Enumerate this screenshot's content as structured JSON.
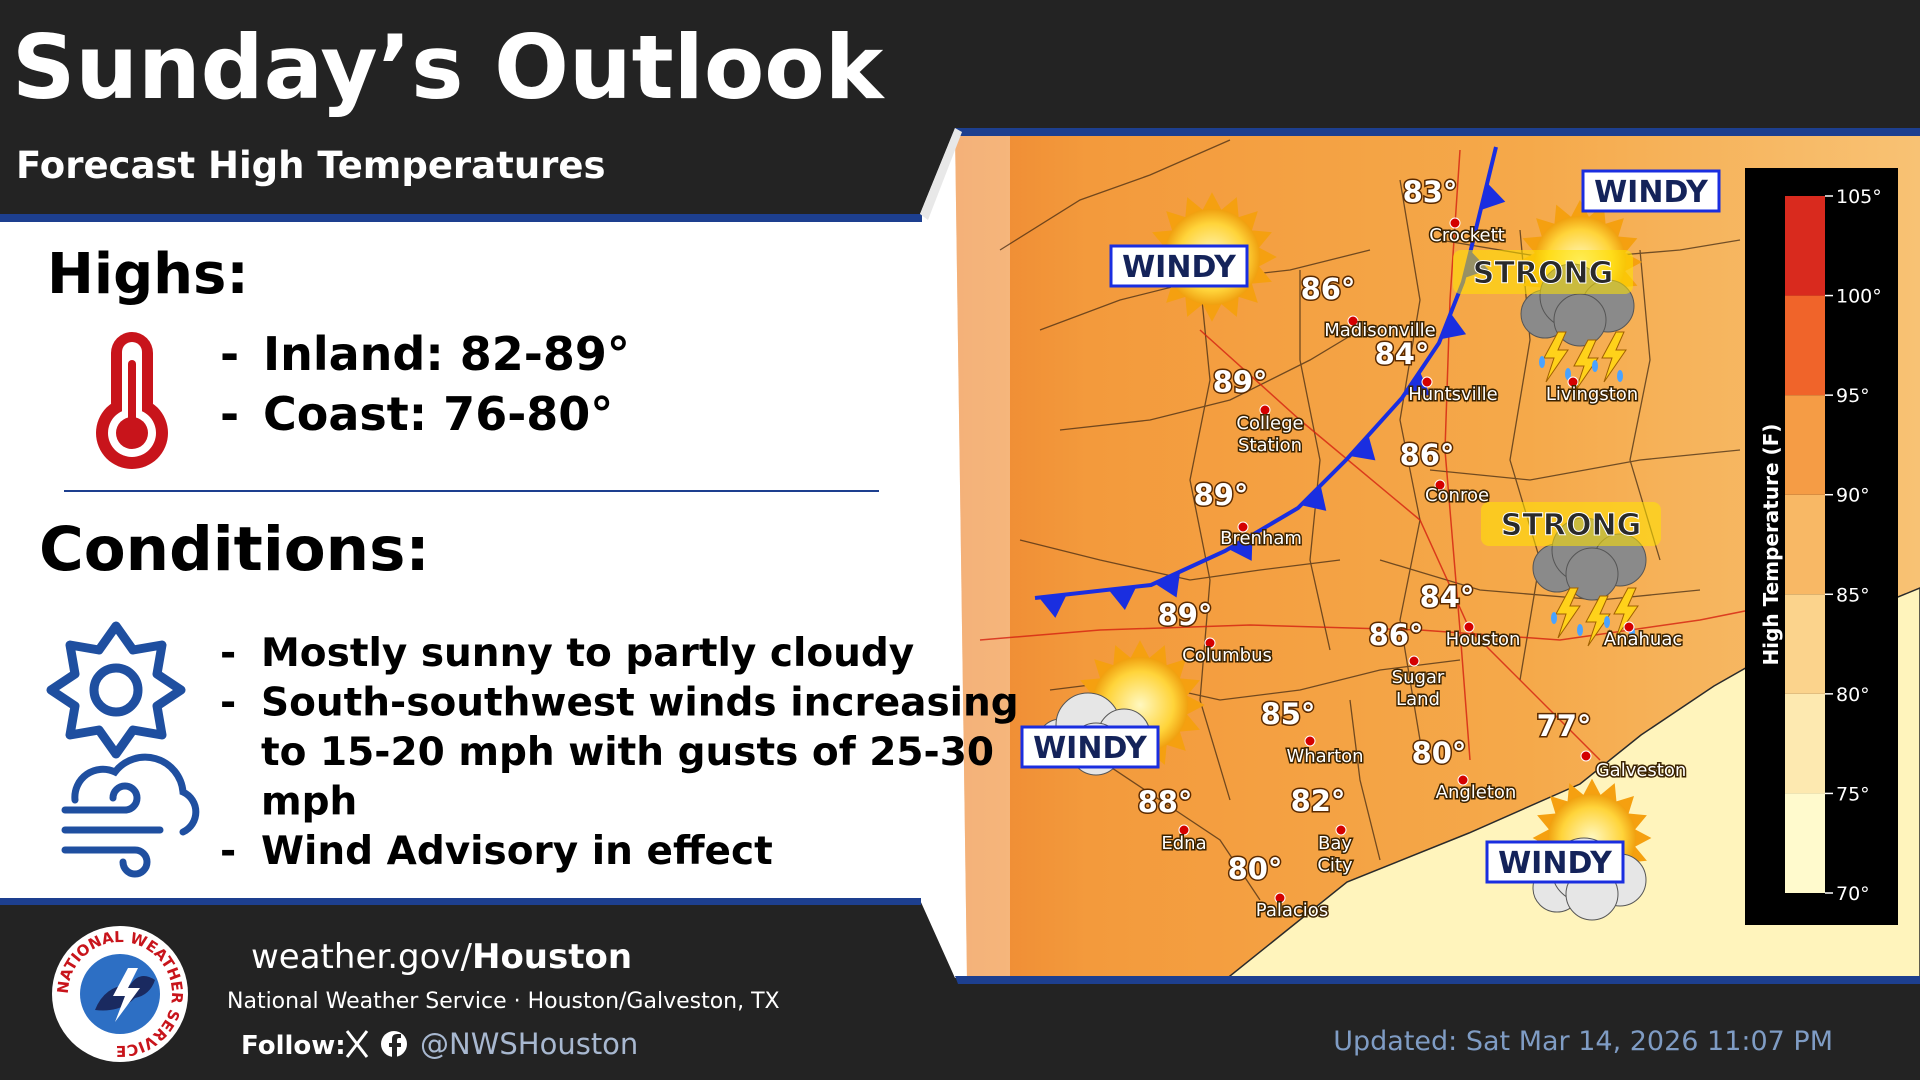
{
  "header": {
    "title": "Sunday’s Outlook",
    "subtitle": "Forecast High Temperatures"
  },
  "bullet": "-",
  "highs": {
    "heading": "Highs:",
    "items": [
      "Inland: 82-89°",
      "Coast: 76-80°"
    ]
  },
  "conditions": {
    "heading": "Conditions:",
    "items": [
      [
        "Mostly sunny to partly cloudy"
      ],
      [
        "South-southwest winds increasing",
        "to 15-20 mph with gusts of 25-30",
        "mph"
      ],
      [
        "Wind Advisory in effect"
      ]
    ]
  },
  "map": {
    "cities": [
      {
        "name": [
          "Crockett"
        ],
        "temp": "83°"
      },
      {
        "name": [
          "Madisonville"
        ],
        "temp": "86°"
      },
      {
        "name": [
          "Huntsville"
        ],
        "temp": "84°"
      },
      {
        "name": [
          "Livingston"
        ]
      },
      {
        "name": [
          "College",
          "Station"
        ],
        "temp": "89°"
      },
      {
        "name": [
          "Conroe"
        ],
        "temp": "86°"
      },
      {
        "name": [
          "Brenham"
        ],
        "temp": "89°"
      },
      {
        "name": [
          "Columbus"
        ],
        "temp": "89°"
      },
      {
        "name": [
          "Houston"
        ],
        "temp": "84°"
      },
      {
        "name": [
          "Sugar",
          "Land"
        ],
        "temp": "86°"
      },
      {
        "name": [
          "Anahuac"
        ]
      },
      {
        "name": [
          "Wharton"
        ],
        "temp": "85°"
      },
      {
        "name": [
          "Angleton"
        ],
        "temp": "80°"
      },
      {
        "name": [
          "Galveston"
        ],
        "temp": "77°"
      },
      {
        "name": [
          "Edna"
        ],
        "temp": "88°"
      },
      {
        "name": [
          "Bay",
          "City"
        ],
        "temp": "82°"
      },
      {
        "name": [
          "Palacios"
        ],
        "temp": "80°"
      }
    ],
    "badges": [
      "WINDY",
      "WINDY",
      "WINDY",
      "WINDY",
      "STRONG",
      "STRONG"
    ],
    "legend": {
      "title": "High Temperature (F)",
      "lim": [
        70,
        105
      ],
      "ticks": [
        {
          "value": 70,
          "label": "70°"
        },
        {
          "value": 75,
          "label": "75°"
        },
        {
          "value": 80,
          "label": "80°"
        },
        {
          "value": 85,
          "label": "85°"
        },
        {
          "value": 90,
          "label": "90°"
        },
        {
          "value": 95,
          "label": "95°"
        },
        {
          "value": 100,
          "label": "100°"
        },
        {
          "value": 105,
          "label": "105°"
        }
      ],
      "colors": [
        "#fffacd",
        "#fde9b0",
        "#fbd38c",
        "#f8b865",
        "#f59c45",
        "#f0642a",
        "#d92a1e"
      ]
    }
  },
  "footer": {
    "logo_text": "NATIONAL WEATHER SERVICE",
    "site": [
      "weather.gov/",
      "Houston"
    ],
    "org": "National Weather Service · Houston/Galveston, TX",
    "follow": "Follow:",
    "handle": "@NWSHouston",
    "updated": "Updated: Sat Mar 14, 2026 11:07 PM"
  }
}
